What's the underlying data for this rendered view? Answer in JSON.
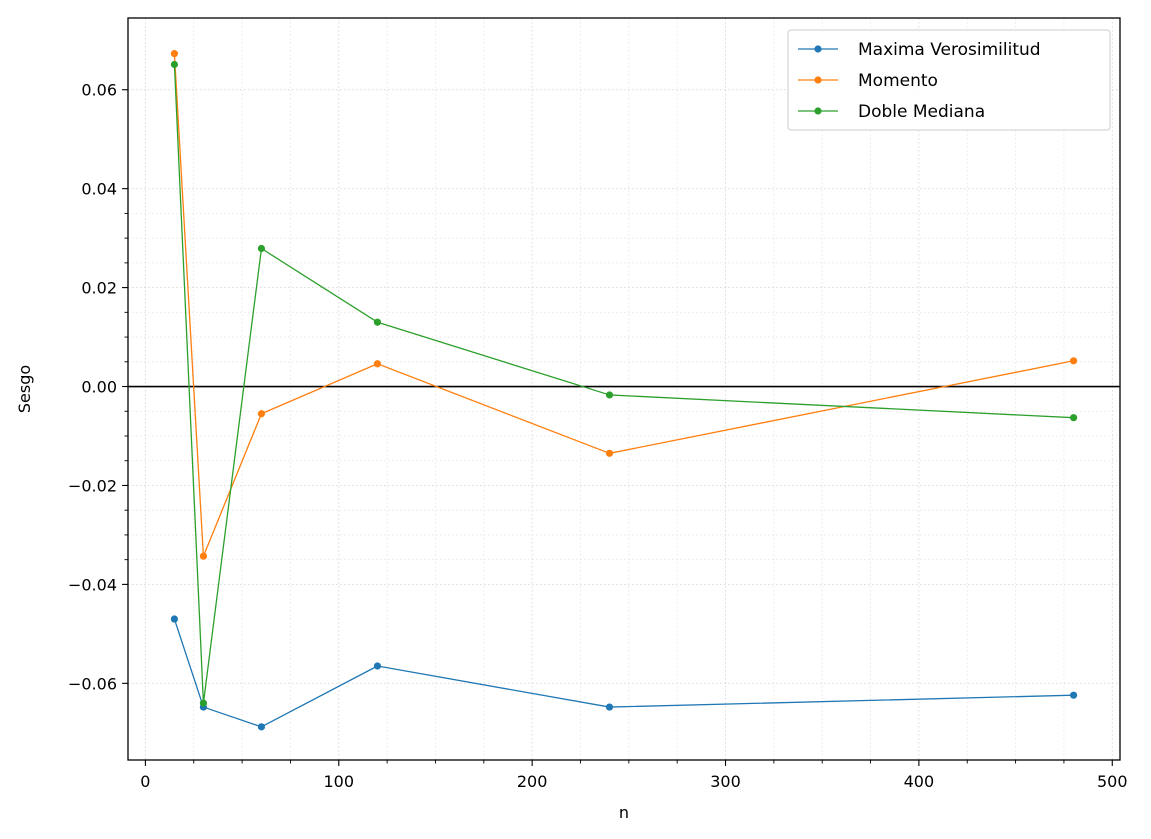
{
  "chart_data": {
    "type": "line",
    "title": "",
    "xlabel": "n",
    "ylabel": "Sesgo",
    "xlim": [
      -9,
      504
    ],
    "ylim": [
      -0.0755,
      0.0745
    ],
    "xticks": [
      0,
      100,
      200,
      300,
      400,
      500
    ],
    "xtick_labels": [
      "0",
      "100",
      "200",
      "300",
      "400",
      "500"
    ],
    "yticks": [
      -0.06,
      -0.04,
      -0.02,
      0.0,
      0.02,
      0.04,
      0.06
    ],
    "ytick_labels": [
      "−0.06",
      "−0.04",
      "−0.02",
      "0.00",
      "0.02",
      "0.04",
      "0.06"
    ],
    "x": [
      15,
      30,
      60,
      120,
      240,
      480
    ],
    "series": [
      {
        "name": "Maxima Verosimilitud",
        "color": "#1f77b4",
        "values": [
          -0.047,
          -0.0648,
          -0.0688,
          -0.0565,
          -0.0648,
          -0.0624
        ]
      },
      {
        "name": "Momento",
        "color": "#ff7f0e",
        "values": [
          0.0673,
          -0.0343,
          -0.0055,
          0.0046,
          -0.0135,
          0.0052
        ]
      },
      {
        "name": "Doble Mediana",
        "color": "#2ca02c",
        "values": [
          0.0651,
          -0.064,
          0.0279,
          0.013,
          -0.0017,
          -0.0063
        ]
      }
    ],
    "reference_line": {
      "y": 0.0,
      "color": "#000000"
    },
    "grid": true,
    "legend_position": "top-right"
  }
}
